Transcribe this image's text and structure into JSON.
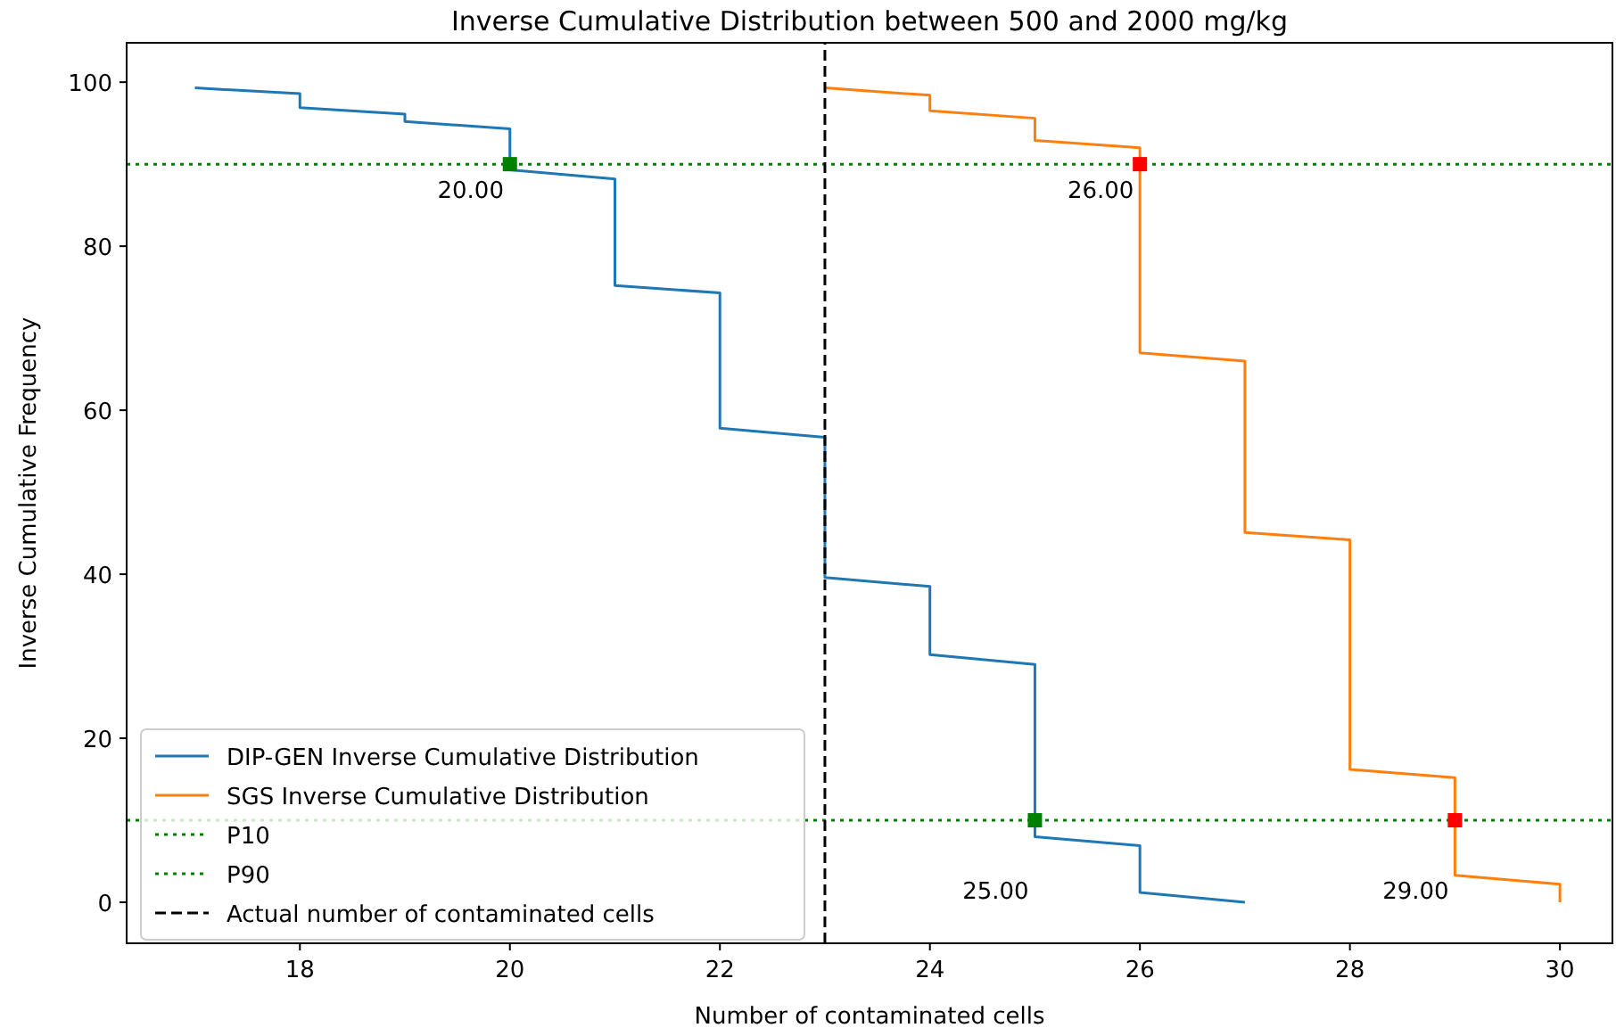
{
  "chart_data": {
    "type": "line",
    "title": "Inverse Cumulative Distribution between 500 and 2000 mg/kg",
    "xlabel": "Number of contaminated cells",
    "ylabel": "Inverse Cumulative Frequency",
    "xlim": [
      16.35,
      30.5
    ],
    "ylim": [
      -5,
      104.8
    ],
    "xticks": [
      18,
      20,
      22,
      24,
      26,
      28,
      30
    ],
    "yticks": [
      0,
      20,
      40,
      60,
      80,
      100
    ],
    "grid": false,
    "legend": "bottom left",
    "series": [
      {
        "name": "DIP-GEN Inverse Cumulative Distribution",
        "color": "#1f77b4",
        "line_style": "solid",
        "x": [
          17,
          18,
          18,
          19,
          19,
          20,
          20,
          21,
          21,
          22,
          22,
          23,
          23,
          24,
          24,
          25,
          25,
          26,
          26,
          27
        ],
        "values": [
          99.3,
          98.6,
          96.9,
          96.1,
          95.2,
          94.3,
          89.3,
          88.2,
          75.2,
          74.3,
          57.8,
          56.7,
          39.6,
          38.5,
          30.2,
          29,
          8,
          6.9,
          1.2,
          0
        ]
      },
      {
        "name": "SGS Inverse Cumulative Distribution",
        "color": "#ff7f0e",
        "line_style": "solid",
        "x": [
          23,
          24,
          24,
          25,
          25,
          26,
          26,
          27,
          27,
          28,
          28,
          29,
          29,
          30,
          30
        ],
        "values": [
          99.3,
          98.4,
          96.5,
          95.6,
          92.9,
          92,
          67,
          66,
          45.1,
          44.2,
          16.2,
          15.2,
          3.3,
          2.2,
          0
        ]
      },
      {
        "name": "P10",
        "color": "#008000",
        "line_style": "dotted",
        "x": [
          16.35,
          30.5
        ],
        "values": [
          90,
          90
        ]
      },
      {
        "name": "P90",
        "color": "#008000",
        "line_style": "dotted",
        "x": [
          16.35,
          30.5
        ],
        "values": [
          10,
          10
        ]
      },
      {
        "name": "Actual number of contaminated cells",
        "color": "#000000",
        "line_style": "dashed",
        "x": [
          23,
          23
        ],
        "values": [
          -5,
          104.8
        ]
      },
      {
        "type": "scatter",
        "color": "#008000",
        "marker": "square",
        "x": [
          20,
          25
        ],
        "values": [
          90,
          10
        ]
      },
      {
        "type": "scatter",
        "color": "#ff0000",
        "marker": "square",
        "x": [
          26,
          29
        ],
        "values": [
          90,
          10
        ]
      }
    ],
    "annotations": [
      {
        "text": "20.00",
        "x": 20,
        "y": 90
      },
      {
        "text": "25.00",
        "x": 25,
        "y": 10
      },
      {
        "text": "26.00",
        "x": 26,
        "y": 90
      },
      {
        "text": "29.00",
        "x": 29,
        "y": 10
      }
    ]
  }
}
